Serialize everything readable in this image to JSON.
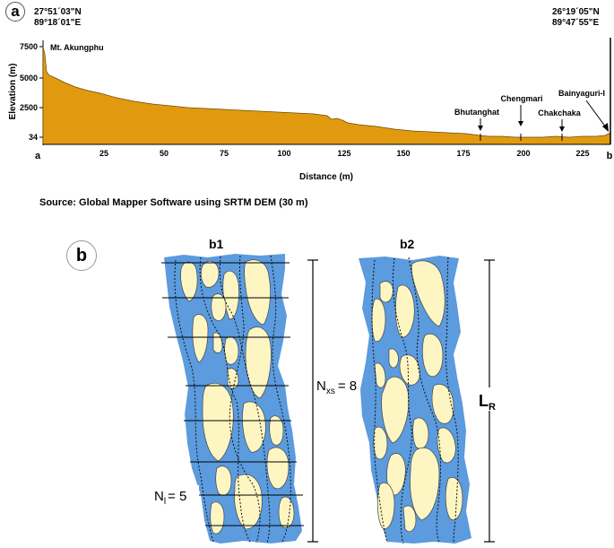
{
  "panel_a": {
    "badge": "a",
    "left_coord_lat": "27°51´03\"N",
    "left_coord_lon": "89°18´01\"E",
    "right_coord_lat": "26°19´05\"N",
    "right_coord_lon": "89°47´55\"E",
    "peak_label": "Mt. Akungphu",
    "ylabel": "Elevation (m)",
    "xlabel": "Distance (m)",
    "end_a": "a",
    "end_b": "b",
    "source": "Source: Global Mapper Software using SRTM DEM (30 m)",
    "fill_color": "#e19a10",
    "chart_data": {
      "type": "area",
      "y_ticks": [
        "7500",
        "5000",
        "2500",
        "34"
      ],
      "x_ticks": [
        "25",
        "50",
        "75",
        "100",
        "125",
        "150",
        "175",
        "200",
        "225"
      ],
      "annotations": [
        {
          "label": "Bhutanghat",
          "x": 183
        },
        {
          "label": "Chengmari",
          "x": 201
        },
        {
          "label": "Chakchaka",
          "x": 219
        },
        {
          "label": "Bainyaguri-I",
          "x": 238
        }
      ]
    }
  },
  "panel_b": {
    "badge": "b",
    "b1_title": "b1",
    "b2_title": "b2",
    "nxs_label": "N",
    "nxs_sub": "xs",
    "nxs_value": "= 8",
    "nl_label": "N",
    "nl_sub": "l",
    "nl_value": "= 5",
    "lr_label": "L",
    "lr_sub": "R",
    "water_color": "#5b9bde",
    "bar_color": "#fdf6c3"
  }
}
